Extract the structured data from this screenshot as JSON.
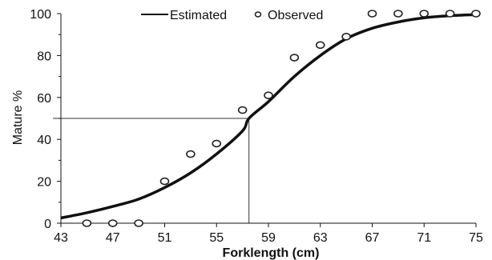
{
  "chart_data": {
    "type": "scatter",
    "title": "",
    "xlabel": "Forklength (cm)",
    "ylabel": "Mature %",
    "xlim": [
      43,
      75
    ],
    "ylim": [
      0,
      100
    ],
    "x_ticks": [
      43,
      47,
      51,
      55,
      59,
      63,
      67,
      71,
      75
    ],
    "y_ticks": [
      0,
      20,
      40,
      60,
      80,
      100
    ],
    "grid": false,
    "legend_placement": "top",
    "series": [
      {
        "name": "Estimated",
        "kind": "line",
        "x": [
          43,
          45,
          47,
          49,
          51,
          53,
          55,
          57,
          57.5,
          59,
          61,
          63,
          65,
          67,
          69,
          71,
          73,
          75
        ],
        "y": [
          2.5,
          5,
          8,
          11.5,
          17,
          24,
          33,
          44,
          50,
          58,
          70,
          80,
          88,
          93,
          96,
          98,
          99,
          99.5
        ]
      },
      {
        "name": "Observed",
        "kind": "points",
        "x": [
          45,
          47,
          49,
          51,
          53,
          55,
          57,
          59,
          61,
          63,
          65,
          67,
          69,
          71,
          73,
          75
        ],
        "y": [
          0,
          0,
          0,
          20,
          33,
          38,
          54,
          61,
          79,
          85,
          89,
          100,
          100,
          100,
          100,
          100
        ]
      }
    ],
    "annotations": {
      "l50_x": 57.5,
      "l50_y": 50
    },
    "colors": {
      "line": "#111111",
      "marker_stroke": "#222222",
      "marker_fill": "#ffffff",
      "axis": "#111111",
      "reference": "#333333"
    }
  }
}
